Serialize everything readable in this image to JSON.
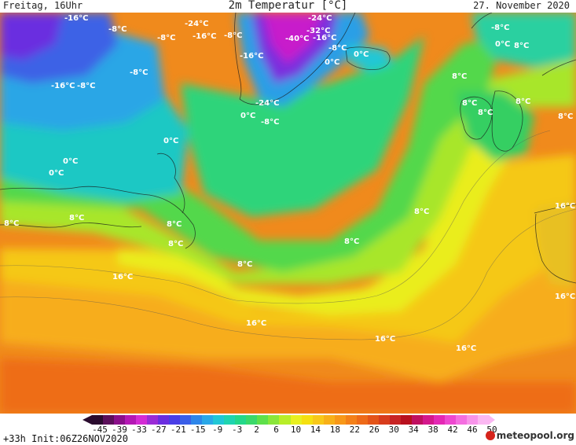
{
  "header": {
    "left": "Freitag, 16Uhr",
    "title": "2m Temperatur [°C]",
    "date": "27. November 2020"
  },
  "footer": {
    "run_info": "+33h  Init:06Z26NOV2020",
    "brand": "meteopool.org"
  },
  "legend": {
    "labels": [
      "-45",
      "-39",
      "-33",
      "-27",
      "-21",
      "-15",
      "-9",
      "-3",
      "2",
      "6",
      "10",
      "14",
      "18",
      "22",
      "26",
      "30",
      "34",
      "38",
      "42",
      "46",
      "50"
    ],
    "colors": [
      "#2a0b2e",
      "#5b0f5a",
      "#8a0f8a",
      "#b418b4",
      "#d42cd4",
      "#9b2cd6",
      "#6b2ee0",
      "#4a3ee6",
      "#3a5fe8",
      "#2d86ea",
      "#2aa8e8",
      "#21c7d6",
      "#1fd4b0",
      "#24d88a",
      "#3ad96a",
      "#5ee04a",
      "#8ae63a",
      "#b8ee28",
      "#e8f020",
      "#f5e010",
      "#f8c818",
      "#f8b018",
      "#f89818",
      "#f48018",
      "#ee6a18",
      "#e45418",
      "#d83c1c",
      "#c82424",
      "#b8101e",
      "#c01060",
      "#d4188c",
      "#e428b4",
      "#ee48d0",
      "#f46ee0",
      "#f894ea",
      "#fbb8f2"
    ]
  },
  "map_labels": [
    {
      "text": "-16°C"
    },
    {
      "text": "-8°C"
    },
    {
      "text": "-24°C"
    },
    {
      "text": "-8°C"
    },
    {
      "text": "-16°C"
    },
    {
      "text": "-8°C"
    },
    {
      "text": "-24°C"
    },
    {
      "text": "-32°C"
    },
    {
      "text": "-40°C"
    },
    {
      "text": "-16°C"
    },
    {
      "text": "-8°C"
    },
    {
      "text": "0°C"
    },
    {
      "text": "-16°C"
    },
    {
      "text": "-8°C"
    },
    {
      "text": "0°C"
    },
    {
      "text": "-8°C"
    },
    {
      "text": "0°C"
    },
    {
      "text": "8°C"
    },
    {
      "text": "-16°C"
    },
    {
      "text": "-8°C"
    },
    {
      "text": "-24°C"
    },
    {
      "text": "0°C"
    },
    {
      "text": "-8°C"
    },
    {
      "text": "8°C"
    },
    {
      "text": "8°C"
    },
    {
      "text": "8°C"
    },
    {
      "text": "8°C"
    },
    {
      "text": "0°C"
    },
    {
      "text": "0°C"
    },
    {
      "text": "0°C"
    },
    {
      "text": "8°C"
    },
    {
      "text": "8°C"
    },
    {
      "text": "8°C"
    },
    {
      "text": "8°C"
    },
    {
      "text": "8°C"
    },
    {
      "text": "8°C"
    },
    {
      "text": "8°C"
    },
    {
      "text": "16°C"
    },
    {
      "text": "16°C"
    },
    {
      "text": "16°C"
    },
    {
      "text": "16°C"
    },
    {
      "text": "16°C"
    },
    {
      "text": "16°C"
    }
  ]
}
